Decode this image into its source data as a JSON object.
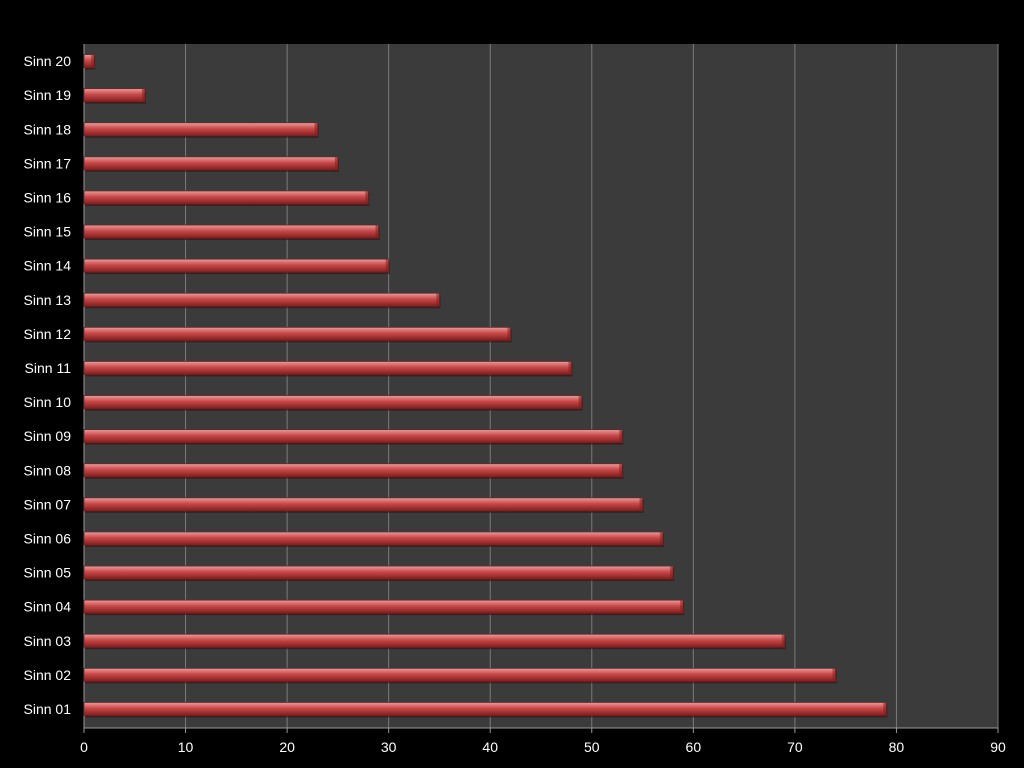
{
  "chart_data": {
    "type": "bar",
    "orientation": "horizontal",
    "title": "",
    "xlabel": "",
    "ylabel": "",
    "categories": [
      "Sinn 20",
      "Sinn 19",
      "Sinn 18",
      "Sinn 17",
      "Sinn 16",
      "Sinn 15",
      "Sinn 14",
      "Sinn 13",
      "Sinn 12",
      "Sinn 11",
      "Sinn 10",
      "Sinn 09",
      "Sinn 08",
      "Sinn 07",
      "Sinn 06",
      "Sinn 05",
      "Sinn 04",
      "Sinn 03",
      "Sinn 02",
      "Sinn 01"
    ],
    "values": [
      1,
      6,
      23,
      25,
      28,
      29,
      30,
      35,
      42,
      48,
      49,
      53,
      53,
      55,
      57,
      58,
      59,
      69,
      74,
      79
    ],
    "xlim": [
      0,
      90
    ],
    "x_ticks": [
      0,
      10,
      20,
      30,
      40,
      50,
      60,
      70,
      80,
      90
    ],
    "grid": "vertical",
    "legend": "none",
    "colors": {
      "background": "#000000",
      "plot_area": "#3b3b3b",
      "gridline": "#7a7a7a",
      "axis": "#9a9a9a",
      "bar": "#c94848",
      "bar_highlight": "#f09a9a",
      "bar_shadow": "#7c2020",
      "text": "#ffffff"
    }
  }
}
